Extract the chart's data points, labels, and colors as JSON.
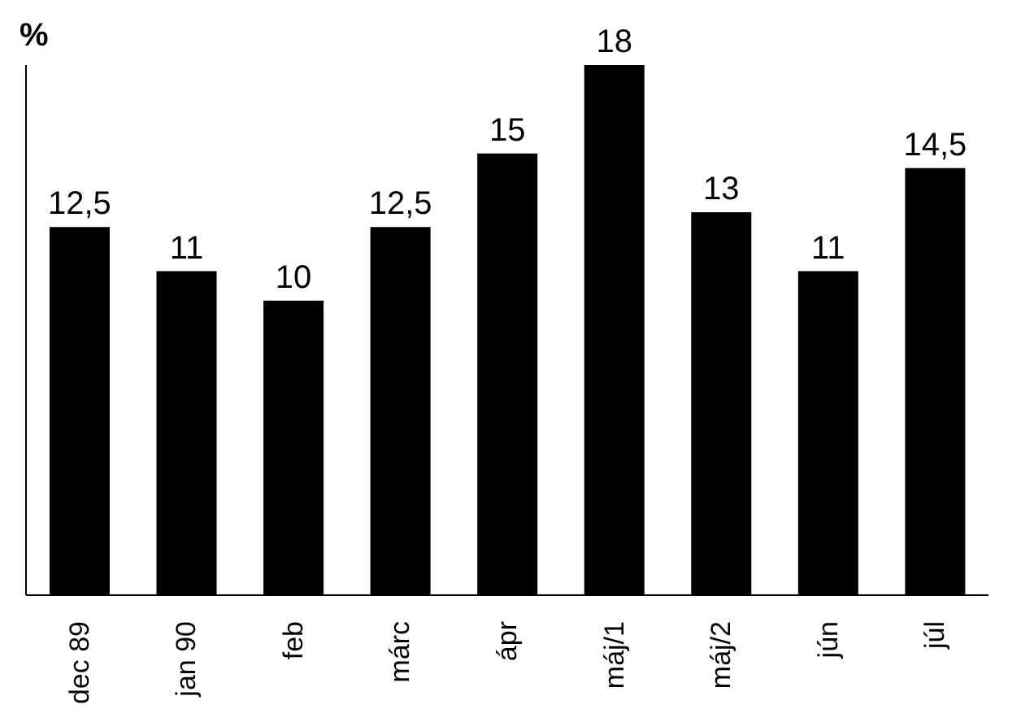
{
  "chart_data": {
    "type": "bar",
    "ylabel": "%",
    "categories": [
      "dec 89",
      "jan 90",
      "feb",
      "márc",
      "ápr",
      "máj/1",
      "máj/2",
      "jún",
      "júl"
    ],
    "values": [
      12.5,
      11,
      10,
      12.5,
      15,
      18,
      13,
      11,
      14.5
    ],
    "value_labels": [
      "12,5",
      "11",
      "10",
      "12,5",
      "15",
      "18",
      "13",
      "11",
      "14,5"
    ],
    "color": "#000000",
    "grid": false
  }
}
